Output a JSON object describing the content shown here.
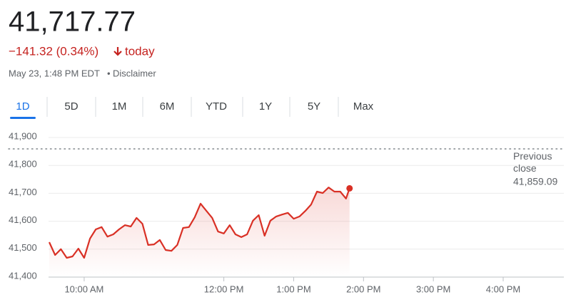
{
  "header": {
    "price": "41,717.77",
    "change": "−141.32 (0.34%)",
    "period": "today",
    "timestamp": "May 23, 1:48 PM EDT",
    "separator": "•",
    "disclaimer": "Disclaimer"
  },
  "tabs": {
    "items": [
      "1D",
      "5D",
      "1M",
      "6M",
      "YTD",
      "1Y",
      "5Y",
      "Max"
    ],
    "selected": "1D"
  },
  "chart_data": {
    "type": "line",
    "color": "#d93025",
    "x": [
      "9:30 AM",
      "9:35 AM",
      "9:40 AM",
      "9:45 AM",
      "9:50 AM",
      "9:55 AM",
      "10:00 AM",
      "10:05 AM",
      "10:10 AM",
      "10:15 AM",
      "10:20 AM",
      "10:25 AM",
      "10:30 AM",
      "10:35 AM",
      "10:40 AM",
      "10:45 AM",
      "10:50 AM",
      "10:55 AM",
      "11:00 AM",
      "11:05 AM",
      "11:10 AM",
      "11:15 AM",
      "11:20 AM",
      "11:25 AM",
      "11:30 AM",
      "11:35 AM",
      "11:40 AM",
      "11:45 AM",
      "11:50 AM",
      "11:55 AM",
      "12:00 PM",
      "12:05 PM",
      "12:10 PM",
      "12:15 PM",
      "12:20 PM",
      "12:25 PM",
      "12:30 PM",
      "12:35 PM",
      "12:40 PM",
      "12:45 PM",
      "12:50 PM",
      "12:55 PM",
      "1:00 PM",
      "1:05 PM",
      "1:10 PM",
      "1:15 PM",
      "1:20 PM",
      "1:25 PM",
      "1:30 PM",
      "1:35 PM",
      "1:40 PM",
      "1:45 PM",
      "1:48 PM"
    ],
    "values": [
      41525,
      41479,
      41500,
      41469,
      41474,
      41502,
      41469,
      41538,
      41571,
      41579,
      41545,
      41553,
      41571,
      41586,
      41581,
      41612,
      41591,
      41515,
      41517,
      41533,
      41497,
      41494,
      41515,
      41576,
      41579,
      41614,
      41663,
      41637,
      41612,
      41563,
      41556,
      41586,
      41553,
      41543,
      41553,
      41602,
      41622,
      41548,
      41602,
      41617,
      41624,
      41630,
      41609,
      41617,
      41637,
      41660,
      41706,
      41701,
      41721,
      41706,
      41706,
      41681,
      41717.77
    ],
    "xlim": [
      "9:30 AM",
      "4:00 PM"
    ],
    "xticks": [
      "10:00 AM",
      "12:00 PM",
      "1:00 PM",
      "2:00 PM",
      "3:00 PM",
      "4:00 PM"
    ],
    "ylim": [
      41400,
      41900
    ],
    "yticks": [
      {
        "value": 41400,
        "label": "41,400"
      },
      {
        "value": 41500,
        "label": "41,500"
      },
      {
        "value": 41600,
        "label": "41,600"
      },
      {
        "value": 41700,
        "label": "41,700"
      },
      {
        "value": 41800,
        "label": "41,800"
      },
      {
        "value": 41900,
        "label": "41,900"
      }
    ],
    "grid": true,
    "previous_close": {
      "label": "Previous close",
      "value": 41859.09,
      "value_label": "41,859.09"
    }
  }
}
